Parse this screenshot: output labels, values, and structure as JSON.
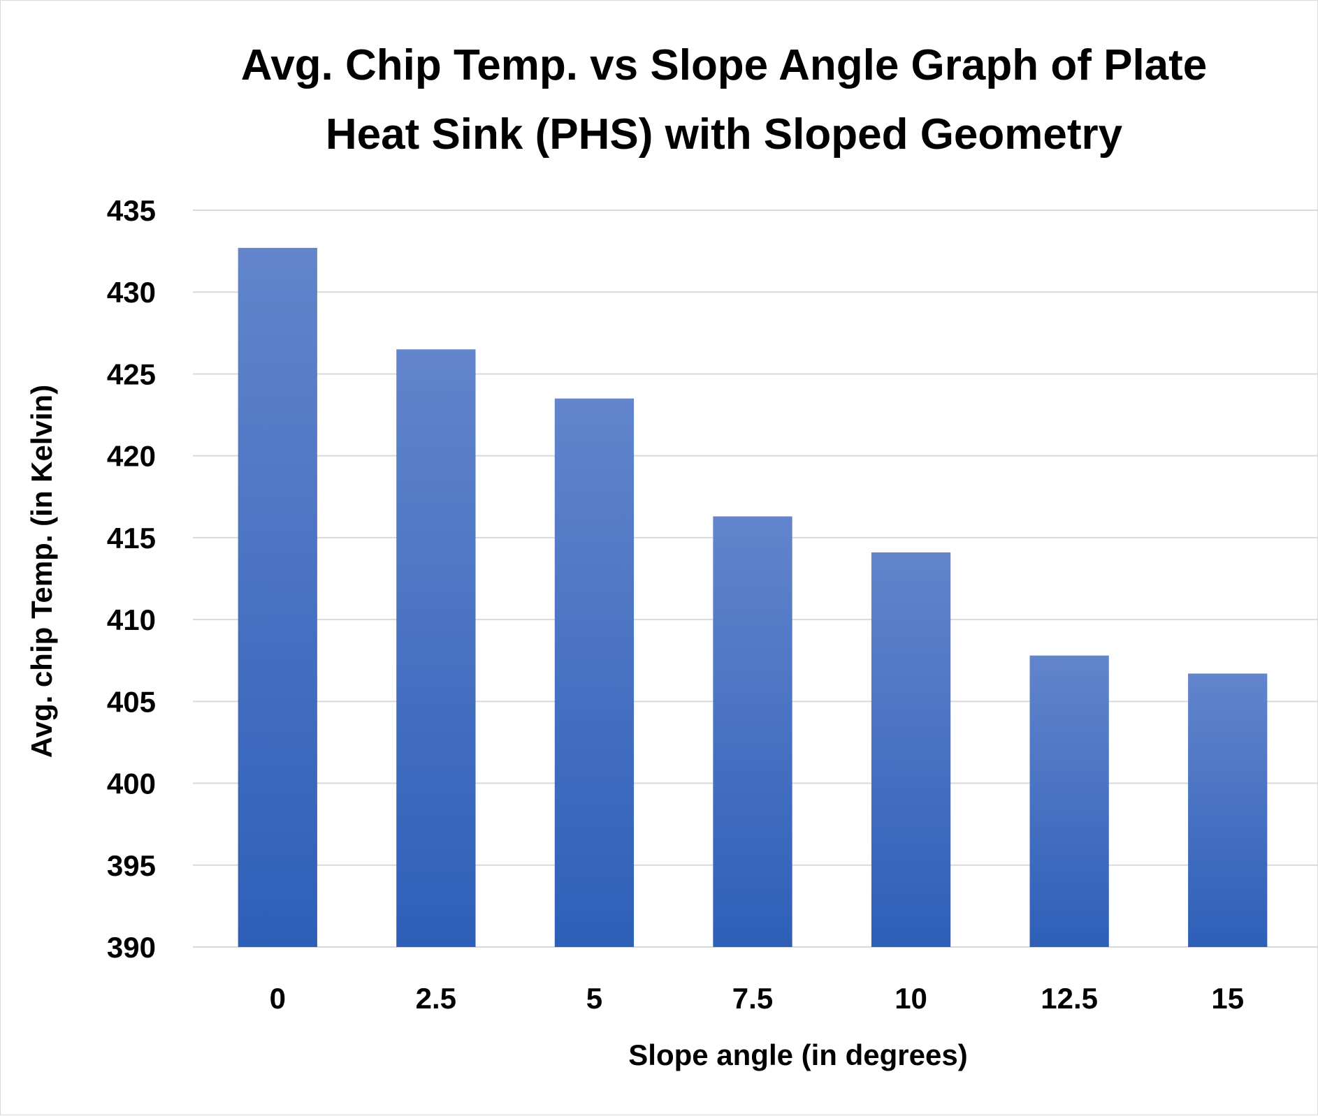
{
  "chart_data": {
    "type": "bar",
    "title_lines": [
      "Avg. Chip Temp. vs Slope Angle Graph of Plate",
      "Heat Sink (PHS) with Sloped Geometry"
    ],
    "xlabel": "Slope angle (in degrees)",
    "ylabel": "Avg. chip Temp. (in Kelvin)",
    "categories": [
      "0",
      "2.5",
      "5",
      "7.5",
      "10",
      "12.5",
      "15"
    ],
    "values": [
      432.7,
      426.5,
      423.5,
      416.3,
      414.1,
      407.8,
      406.7
    ],
    "ylim": [
      390,
      435
    ],
    "yticks": [
      "390",
      "395",
      "400",
      "405",
      "410",
      "415",
      "420",
      "425",
      "430",
      "435"
    ],
    "grid": true,
    "legend": "none",
    "bar_color_top": "#6285cc",
    "bar_color_bottom": "#2e5fb8"
  }
}
